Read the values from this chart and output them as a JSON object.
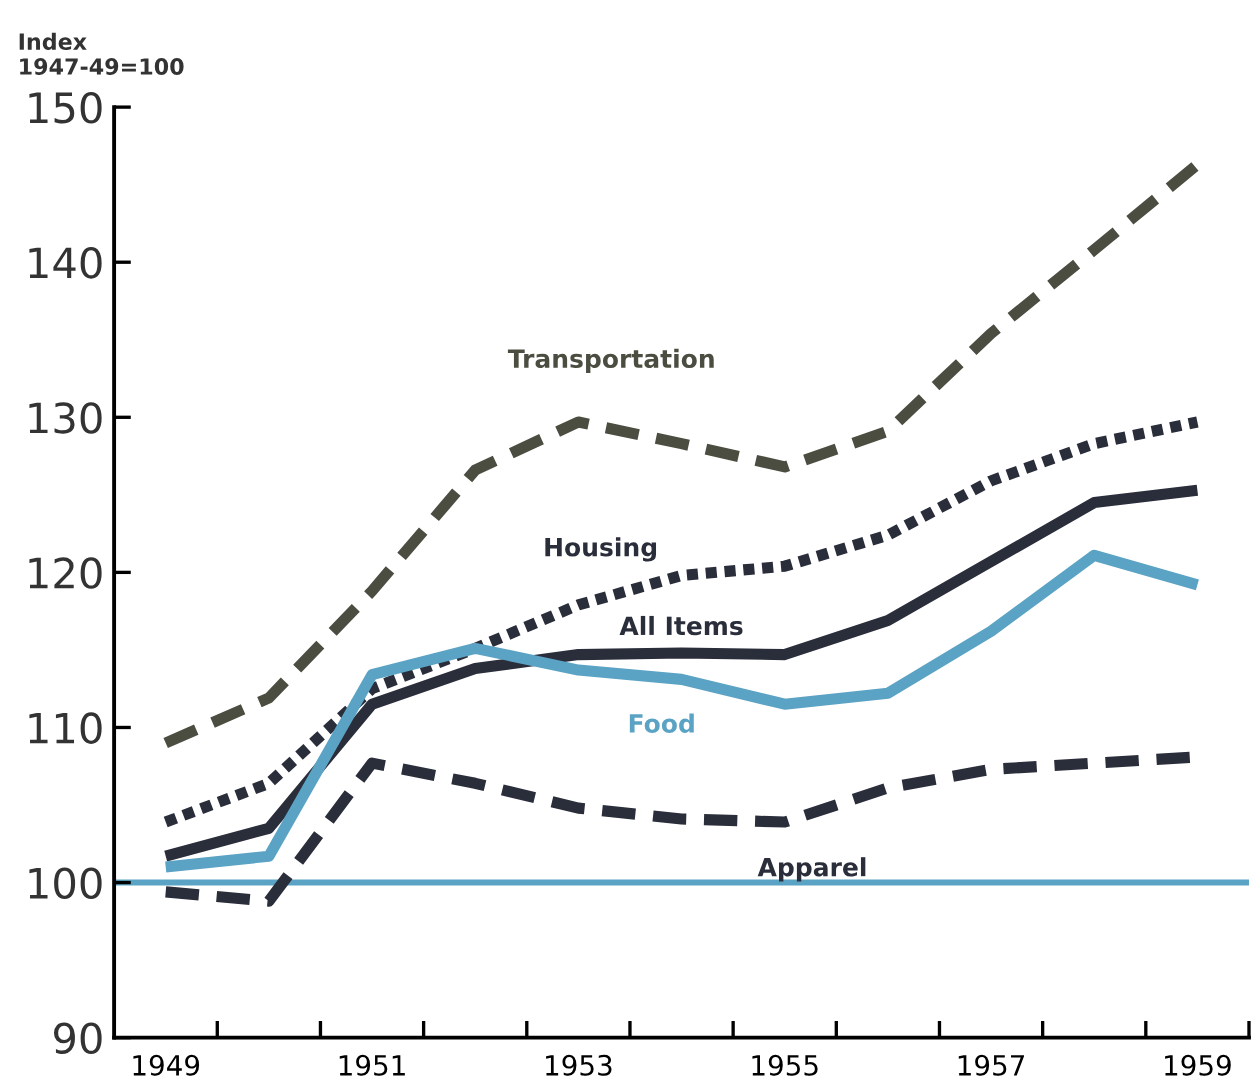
{
  "chart_data": {
    "type": "line",
    "ylabel": "Index\n1947-49=100",
    "x": [
      1949,
      1950,
      1951,
      1952,
      1953,
      1954,
      1955,
      1956,
      1957,
      1958,
      1959
    ],
    "xlim": [
      1948.5,
      1959.5
    ],
    "xticks": [
      {
        "value": 1949,
        "label": "1949"
      },
      {
        "value": 1951,
        "label": "1951"
      },
      {
        "value": 1953,
        "label": "1953"
      },
      {
        "value": 1955,
        "label": "1955"
      },
      {
        "value": 1957,
        "label": "1957"
      },
      {
        "value": 1959,
        "label": "1959"
      },
      {
        "value": 1949.5,
        "label": null
      },
      {
        "value": 1950.5,
        "label": null
      },
      {
        "value": 1951.5,
        "label": null
      },
      {
        "value": 1952.5,
        "label": null
      },
      {
        "value": 1953.5,
        "label": null
      },
      {
        "value": 1954.5,
        "label": null
      },
      {
        "value": 1955.5,
        "label": null
      },
      {
        "value": 1956.5,
        "label": null
      },
      {
        "value": 1957.5,
        "label": null
      },
      {
        "value": 1958.5,
        "label": null
      },
      {
        "value": 1959.5,
        "label": null
      }
    ],
    "ylim": [
      90,
      150
    ],
    "yticks": [
      90,
      100,
      110,
      120,
      130,
      140,
      150
    ],
    "grid": false,
    "legend": false,
    "series": [
      {
        "name": "Transportation",
        "color": "#4a4d40",
        "line_style": "dashed",
        "values": [
          109,
          111.9,
          118.8,
          126.6,
          129.7,
          128.3,
          126.8,
          129.1,
          135.4,
          140.8,
          146.3
        ]
      },
      {
        "name": "Housing",
        "color": "#2a2d3a",
        "line_style": "dotted",
        "values": [
          103.9,
          106.4,
          112.5,
          115.1,
          117.9,
          119.8,
          120.4,
          122.4,
          125.9,
          128.3,
          129.7
        ]
      },
      {
        "name": "All Items",
        "color": "#2a2d3a",
        "line_style": "solid",
        "values": [
          101.7,
          103.5,
          111.5,
          113.8,
          114.7,
          114.8,
          114.7,
          116.9,
          120.7,
          124.5,
          125.3
        ]
      },
      {
        "name": "Food",
        "color": "#5ba3c4",
        "line_style": "solid",
        "values": [
          101.0,
          101.7,
          113.4,
          115.1,
          113.7,
          113.1,
          111.5,
          112.2,
          116.2,
          121.1,
          119.2
        ]
      },
      {
        "name": "Apparel",
        "color": "#2a2d3a",
        "line_style": "dashed",
        "values": [
          99.4,
          98.8,
          107.7,
          106.4,
          104.8,
          104.1,
          103.9,
          106.1,
          107.3,
          107.7,
          108.1
        ]
      }
    ],
    "ref_lines": [
      {
        "axis": "y",
        "value": 100,
        "label": null,
        "color": "#5ba3c4",
        "line_style": "solid"
      }
    ]
  }
}
